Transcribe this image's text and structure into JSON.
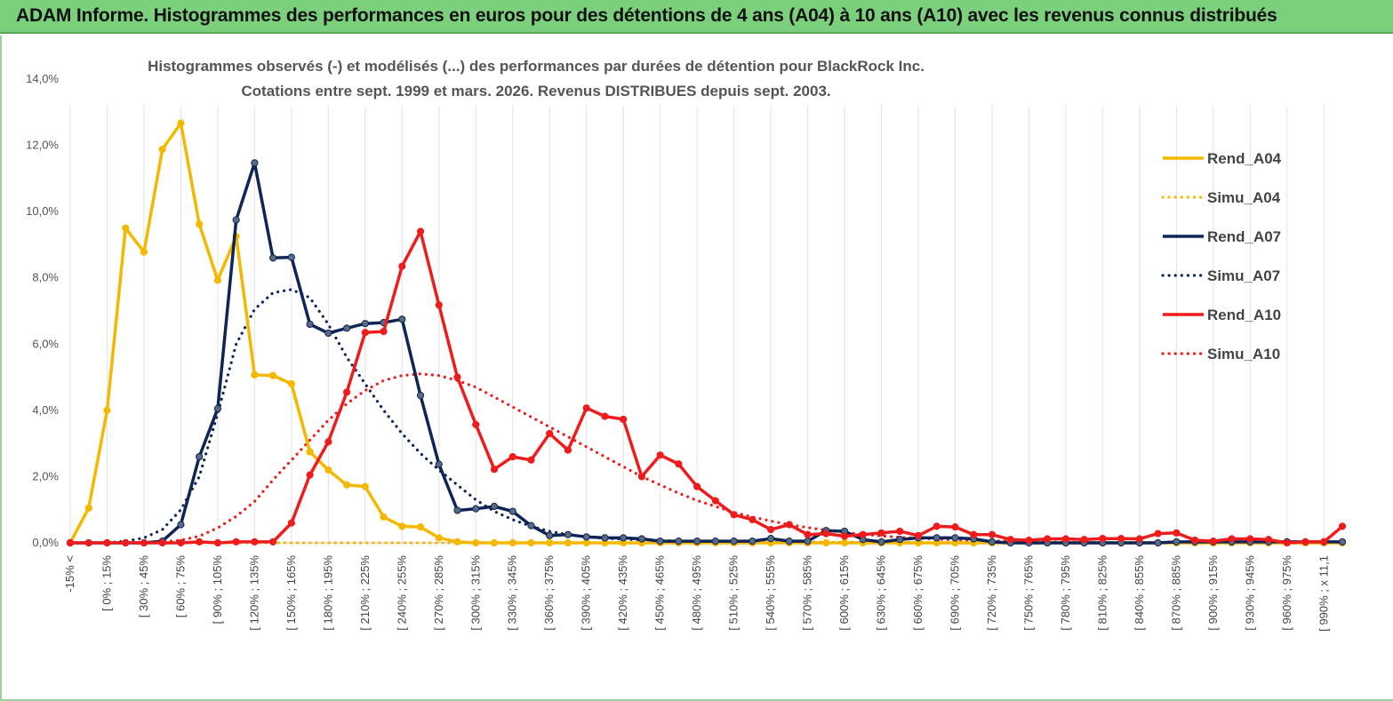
{
  "banner": {
    "title": "ADAM Informe. Histogrammes des performances en euros pour des détentions de 4 ans (A04) à 10 ans (A10) avec les revenus connus distribués"
  },
  "colors": {
    "banner_bg": "#7ccf7c",
    "A04": "#f5b800",
    "A07": "#0f2557",
    "A10": "#ee1c1c"
  },
  "chart_data": {
    "type": "line",
    "title_lines": [
      "Histogrammes observés (-) et modélisés (...) des performances par durées de détention pour BlackRock Inc.",
      "Cotations entre sept. 1999 et mars. 2026. Revenus DISTRIBUES depuis sept. 2003."
    ],
    "ylim": [
      0,
      0.14
    ],
    "y_ticks": [
      "0,0%",
      "2,0%",
      "4,0%",
      "6,0%",
      "8,0%",
      "10,0%",
      "12,0%",
      "14,0%"
    ],
    "grid": "vertical",
    "legend_position": "right",
    "x_labels": [
      "-15% <",
      "[ 0% ; 15%",
      "[ 30% ; 45%",
      "[ 60% ; 75%",
      "[ 90% ; 105%",
      "[ 120% ; 135%",
      "[ 150% ; 165%",
      "[ 180% ; 195%",
      "[ 210% ; 225%",
      "[ 240% ; 255%",
      "[ 270% ; 285%",
      "[ 300% ; 315%",
      "[ 330% ; 345%",
      "[ 360% ; 375%",
      "[ 390% ; 405%",
      "[ 420% ; 435%",
      "[ 450% ; 465%",
      "[ 480% ; 495%",
      "[ 510% ; 525%",
      "[ 540% ; 555%",
      "[ 570% ; 585%",
      "[ 600% ; 615%",
      "[ 630% ; 645%",
      "[ 660% ; 675%",
      "[ 690% ; 705%",
      "[ 720% ; 735%",
      "[ 750% ; 765%",
      "[ 780% ; 795%",
      "[ 810% ; 825%",
      "[ 840% ; 855%",
      "[ 870% ; 885%",
      "[ 900% ; 915%",
      "[ 930% ; 945%",
      "[ 960% ; 975%",
      "[ 990% ; x 11,1"
    ],
    "series": [
      {
        "name": "Rend_A04",
        "key": "A04",
        "style": "solid",
        "values": [
          0,
          0.0105,
          0.04,
          0.095,
          0.0878,
          0.1188,
          0.1267,
          0.0962,
          0.0793,
          0.0925,
          0.0507,
          0.0505,
          0.048,
          0.0275,
          0.022,
          0.0175,
          0.017,
          0.0078,
          0.005,
          0.0048,
          0.0015,
          0.0003,
          0,
          0,
          0,
          0,
          0,
          0,
          0,
          0,
          0,
          0,
          0,
          0,
          0,
          0,
          0,
          0,
          0,
          0,
          0,
          0,
          0,
          0,
          0,
          0,
          0,
          0,
          0,
          0,
          0,
          0,
          0,
          0,
          0,
          0,
          0,
          0,
          0,
          0,
          0,
          0,
          0,
          0,
          0,
          0,
          0,
          0,
          0,
          0
        ]
      },
      {
        "name": "Simu_A04",
        "key": "A04",
        "style": "dotted",
        "values": [
          0,
          0,
          0,
          0,
          0,
          0,
          0,
          0,
          0,
          0,
          0,
          0,
          0,
          0,
          0,
          0,
          0,
          0,
          0,
          0,
          0,
          0,
          0,
          0,
          0,
          0,
          0,
          0,
          0,
          0,
          0,
          0,
          0,
          0,
          0,
          0,
          0,
          0,
          0,
          0,
          0,
          0,
          0,
          0,
          0,
          0,
          0,
          0,
          0,
          0,
          0,
          0,
          0,
          0,
          0,
          0,
          0,
          0,
          0,
          0,
          0,
          0,
          0,
          0,
          0,
          0,
          0,
          0,
          0,
          0
        ]
      },
      {
        "name": "Rend_A07",
        "key": "A07",
        "style": "solid",
        "values": [
          0,
          0,
          0,
          0,
          0,
          0.0005,
          0.0055,
          0.026,
          0.0405,
          0.0975,
          0.1147,
          0.086,
          0.0862,
          0.066,
          0.0633,
          0.0648,
          0.0662,
          0.0665,
          0.0675,
          0.0445,
          0.0237,
          0.0098,
          0.0103,
          0.011,
          0.0095,
          0.0052,
          0.0022,
          0.0025,
          0.0018,
          0.0015,
          0.0015,
          0.0012,
          0.0005,
          0.0005,
          0.0005,
          0.0005,
          0.0005,
          0.0005,
          0.0013,
          0.0005,
          0.0005,
          0.0037,
          0.0035,
          0.001,
          0.0003,
          0.001,
          0.0015,
          0.0015,
          0.0015,
          0.0012,
          0.0003,
          0,
          0,
          0,
          0,
          0,
          0,
          0,
          0,
          0,
          0.0003,
          0.0003,
          0.0003,
          0.0003,
          0.0003,
          0.0003,
          0.0003,
          0.0003,
          0.0003,
          0.0003
        ]
      },
      {
        "name": "Simu_A07",
        "key": "A07",
        "style": "dotted",
        "values": [
          0,
          0,
          0,
          0.0005,
          0.0015,
          0.004,
          0.01,
          0.02,
          0.039,
          0.06,
          0.0705,
          0.0755,
          0.0765,
          0.074,
          0.066,
          0.056,
          0.048,
          0.04,
          0.033,
          0.027,
          0.022,
          0.0175,
          0.013,
          0.0095,
          0.007,
          0.005,
          0.0035,
          0.0025,
          0.0018,
          0.0014,
          0.0011,
          0.0009,
          0.0007,
          0.0005,
          0.0004,
          0.0003,
          0.0003,
          0.0002,
          0.0002,
          0.0002,
          0.0002,
          0.0001,
          0.0001,
          0.0001,
          0.0001,
          0.0001,
          0.0001,
          0,
          0,
          0,
          0,
          0,
          0,
          0,
          0,
          0,
          0,
          0,
          0,
          0,
          0,
          0,
          0,
          0,
          0,
          0,
          0,
          0,
          0,
          0
        ]
      },
      {
        "name": "Rend_A10",
        "key": "A10",
        "style": "solid",
        "values": [
          0,
          0,
          0,
          0,
          0,
          0,
          0,
          0.0003,
          0,
          0.0003,
          0.0003,
          0.0003,
          0.006,
          0.0205,
          0.0305,
          0.0455,
          0.0635,
          0.0638,
          0.0835,
          0.094,
          0.0718,
          0.05,
          0.0357,
          0.0222,
          0.026,
          0.025,
          0.033,
          0.028,
          0.0407,
          0.0382,
          0.0373,
          0.02,
          0.0265,
          0.0238,
          0.017,
          0.0127,
          0.0085,
          0.007,
          0.004,
          0.0055,
          0.0025,
          0.0028,
          0.002,
          0.0025,
          0.003,
          0.0035,
          0.0022,
          0.005,
          0.0048,
          0.0025,
          0.0025,
          0.001,
          0.0008,
          0.0012,
          0.0012,
          0.001,
          0.0013,
          0.0013,
          0.0012,
          0.0028,
          0.003,
          0.0008,
          0.0005,
          0.0012,
          0.0012,
          0.001,
          0.0,
          0.0003,
          0.0003,
          0.005
        ]
      },
      {
        "name": "Simu_A10",
        "key": "A10",
        "style": "dotted",
        "values": [
          0,
          0,
          0,
          0,
          0.0001,
          0.0003,
          0.0008,
          0.002,
          0.0045,
          0.008,
          0.0125,
          0.019,
          0.025,
          0.031,
          0.037,
          0.042,
          0.046,
          0.049,
          0.0505,
          0.051,
          0.0505,
          0.049,
          0.047,
          0.044,
          0.041,
          0.038,
          0.035,
          0.032,
          0.029,
          0.026,
          0.023,
          0.02,
          0.0175,
          0.015,
          0.0128,
          0.011,
          0.0092,
          0.0078,
          0.0066,
          0.0055,
          0.0046,
          0.0038,
          0.0031,
          0.0026,
          0.0021,
          0.0017,
          0.0014,
          0.0011,
          0.0009,
          0.0007,
          0.0006,
          0.0005,
          0.0004,
          0.0003,
          0.0002,
          0.0002,
          0.0001,
          0.0001,
          0.0001,
          0.0001,
          0,
          0,
          0,
          0,
          0,
          0,
          0,
          0,
          0,
          0
        ]
      }
    ]
  }
}
